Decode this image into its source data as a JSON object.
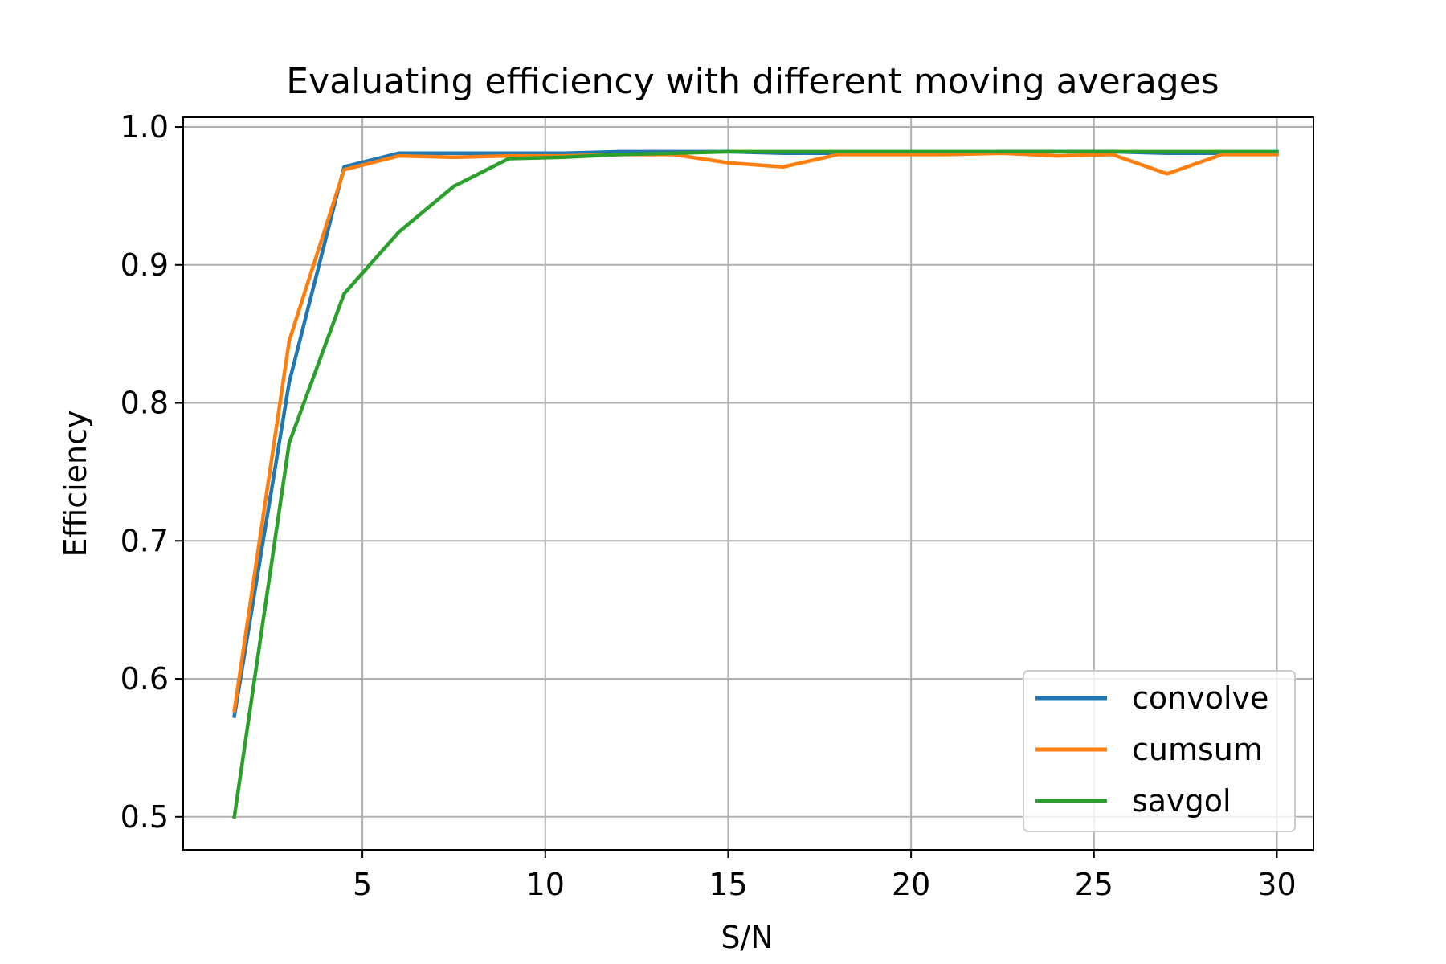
{
  "chart_data": {
    "type": "line",
    "title": "Evaluating efficiency with different moving averages",
    "xlabel": "S/N",
    "ylabel": "Efficiency",
    "xlim": [
      0.1,
      31.0
    ],
    "ylim": [
      0.476,
      1.007
    ],
    "xticks": [
      5,
      10,
      15,
      20,
      25,
      30
    ],
    "yticks": [
      0.5,
      0.6,
      0.7,
      0.8,
      0.9,
      1.0
    ],
    "xtick_labels": [
      "5",
      "10",
      "15",
      "20",
      "25",
      "30"
    ],
    "ytick_labels": [
      "0.5",
      "0.6",
      "0.7",
      "0.8",
      "0.9",
      "1.0"
    ],
    "grid": true,
    "legend": {
      "position": "lower-right"
    },
    "x": [
      1.5,
      3.0,
      4.5,
      6.0,
      7.5,
      9.0,
      10.5,
      12.0,
      13.5,
      15.0,
      16.5,
      18.0,
      19.5,
      21.0,
      22.5,
      24.0,
      25.5,
      27.0,
      28.5,
      30.0
    ],
    "series": [
      {
        "name": "convolve",
        "color": "#1f77b4",
        "values": [
          0.573,
          0.815,
          0.971,
          0.981,
          0.981,
          0.981,
          0.981,
          0.982,
          0.982,
          0.982,
          0.981,
          0.981,
          0.981,
          0.981,
          0.982,
          0.982,
          0.982,
          0.981,
          0.981,
          0.981
        ]
      },
      {
        "name": "cumsum",
        "color": "#ff7f0e",
        "values": [
          0.577,
          0.845,
          0.969,
          0.979,
          0.978,
          0.979,
          0.979,
          0.98,
          0.98,
          0.974,
          0.971,
          0.98,
          0.98,
          0.98,
          0.981,
          0.979,
          0.98,
          0.966,
          0.98,
          0.98
        ]
      },
      {
        "name": "savgol",
        "color": "#2ca02c",
        "values": [
          0.5,
          0.771,
          0.879,
          0.924,
          0.957,
          0.977,
          0.978,
          0.98,
          0.981,
          0.982,
          0.982,
          0.982,
          0.982,
          0.982,
          0.982,
          0.982,
          0.982,
          0.982,
          0.982,
          0.982
        ]
      }
    ]
  }
}
